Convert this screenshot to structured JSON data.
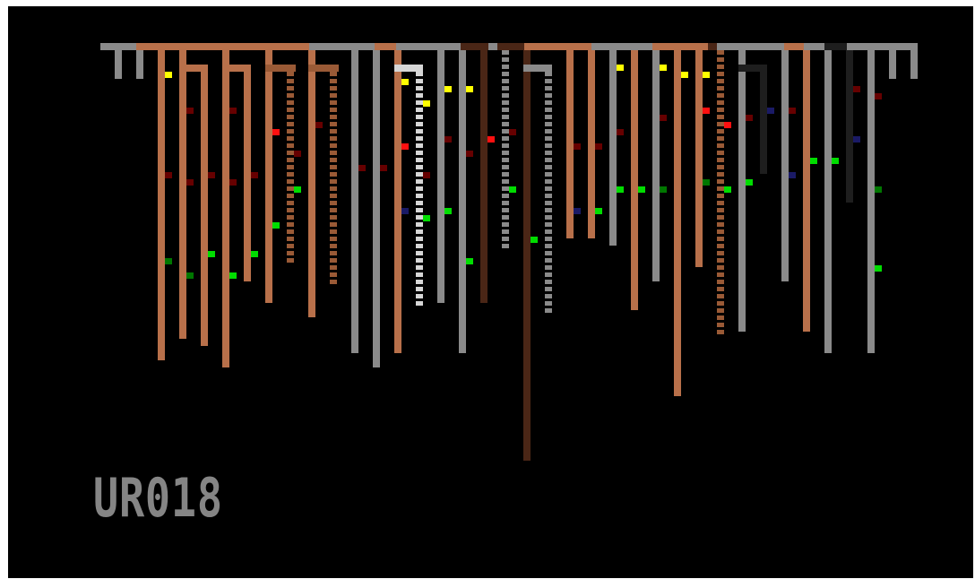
{
  "level": {
    "label": "UR018"
  },
  "palette": {
    "background": "#000000",
    "ceiling_gray": "#8a8a8a",
    "root_orange": "#b8704a",
    "root_dark": "#4a2616",
    "root_black": "#1e1e1e",
    "root_white": "#d6d6d6",
    "root_dotted": "#9a5a36",
    "gem_yellow": "#ffff00",
    "gem_green": "#00dd00",
    "gem_red": "#ff1010",
    "gem_darkred": "#660000",
    "gem_navy": "#1a1a66",
    "gem_darkgreen": "#007700"
  },
  "legend": {
    "gems": [
      "yellow",
      "green",
      "red",
      "darkred",
      "navy",
      "darkgreen"
    ]
  }
}
